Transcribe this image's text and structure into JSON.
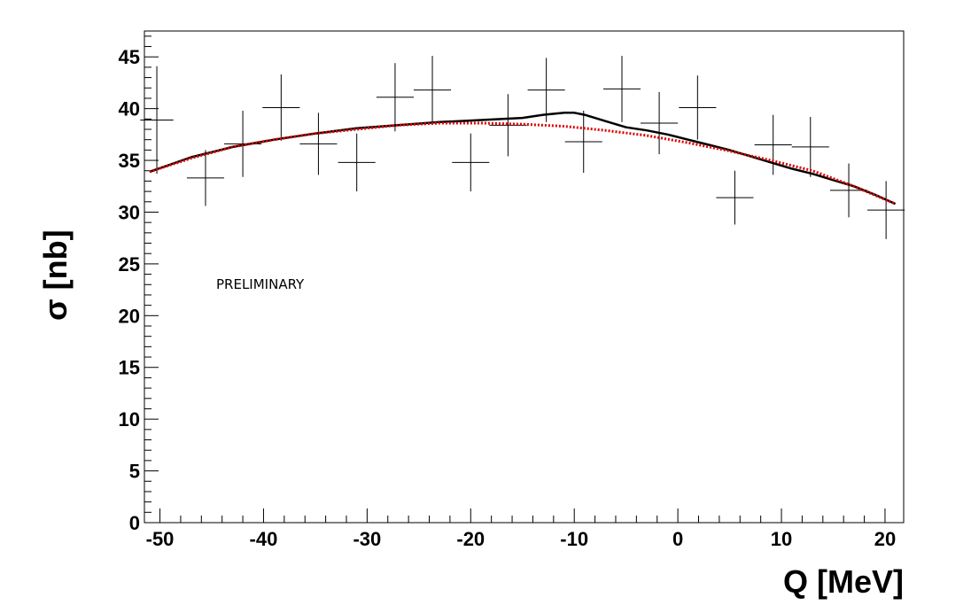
{
  "chart_data": {
    "type": "scatter",
    "xlabel": "Q [MeV]",
    "ylabel": "σ [nb]",
    "annotation": "PRELIMINARY",
    "xlim": [
      -51.5,
      21.8
    ],
    "ylim": [
      0,
      47.5
    ],
    "grid": false,
    "x_ticks": [
      -50,
      -40,
      -30,
      -20,
      -10,
      0,
      10,
      20
    ],
    "y_ticks": [
      0,
      5,
      10,
      15,
      20,
      25,
      30,
      35,
      40,
      45
    ],
    "x_tick_labels": [
      "-50",
      "-40",
      "-30",
      "-20",
      "-10",
      "0",
      "10",
      "20"
    ],
    "y_tick_labels": [
      "0",
      "5",
      "10",
      "15",
      "20",
      "25",
      "30",
      "35",
      "40",
      "45"
    ],
    "colors": {
      "data": "#000000",
      "fit_total": "#000000",
      "fit_background": "#dd0000"
    },
    "series": [
      {
        "kind": "errorbars",
        "points": [
          {
            "x": -50.3,
            "y": 38.9,
            "xerr": 1.6,
            "yerr": 5.2
          },
          {
            "x": -45.6,
            "y": 33.3,
            "xerr": 1.8,
            "yerr": 2.7
          },
          {
            "x": -42.0,
            "y": 36.6,
            "xerr": 1.8,
            "yerr": 3.2
          },
          {
            "x": -38.3,
            "y": 40.1,
            "xerr": 1.8,
            "yerr": 3.2
          },
          {
            "x": -34.7,
            "y": 36.6,
            "xerr": 1.8,
            "yerr": 3.0
          },
          {
            "x": -31.0,
            "y": 34.8,
            "xerr": 1.8,
            "yerr": 2.8
          },
          {
            "x": -27.3,
            "y": 41.1,
            "xerr": 1.8,
            "yerr": 3.3
          },
          {
            "x": -23.7,
            "y": 41.8,
            "xerr": 1.8,
            "yerr": 3.3
          },
          {
            "x": -20.0,
            "y": 34.8,
            "xerr": 1.8,
            "yerr": 2.8
          },
          {
            "x": -16.4,
            "y": 38.4,
            "xerr": 1.8,
            "yerr": 3.0
          },
          {
            "x": -12.7,
            "y": 41.8,
            "xerr": 1.8,
            "yerr": 3.1
          },
          {
            "x": -9.1,
            "y": 36.8,
            "xerr": 1.8,
            "yerr": 3.0
          },
          {
            "x": -5.4,
            "y": 41.9,
            "xerr": 1.8,
            "yerr": 3.2
          },
          {
            "x": -1.8,
            "y": 38.6,
            "xerr": 1.8,
            "yerr": 3.0
          },
          {
            "x": 1.9,
            "y": 40.1,
            "xerr": 1.8,
            "yerr": 3.1
          },
          {
            "x": 5.5,
            "y": 31.4,
            "xerr": 1.8,
            "yerr": 2.6
          },
          {
            "x": 9.2,
            "y": 36.5,
            "xerr": 1.8,
            "yerr": 2.9
          },
          {
            "x": 12.8,
            "y": 36.3,
            "xerr": 1.8,
            "yerr": 2.9
          },
          {
            "x": 16.5,
            "y": 32.1,
            "xerr": 1.8,
            "yerr": 2.6
          },
          {
            "x": 20.1,
            "y": 30.2,
            "xerr": 1.8,
            "yerr": 2.8
          }
        ]
      },
      {
        "kind": "line",
        "style": "solid",
        "x": [
          -51,
          -47,
          -43,
          -39,
          -35,
          -31,
          -27,
          -23,
          -19,
          -15,
          -13,
          -11,
          -10,
          -9,
          -7,
          -5,
          -3,
          -1,
          1,
          3,
          5,
          7,
          9,
          11,
          13,
          15,
          17,
          19,
          21
        ],
        "y": [
          33.9,
          35.3,
          36.3,
          37.0,
          37.6,
          38.1,
          38.4,
          38.7,
          38.9,
          39.1,
          39.4,
          39.6,
          39.6,
          39.4,
          38.8,
          38.2,
          37.9,
          37.5,
          37.0,
          36.5,
          36.0,
          35.4,
          34.8,
          34.2,
          33.7,
          33.1,
          32.5,
          31.7,
          30.8
        ]
      },
      {
        "kind": "line",
        "style": "dotted",
        "x": [
          -51,
          -47,
          -43,
          -39,
          -35,
          -31,
          -27,
          -23,
          -19,
          -15,
          -11,
          -7,
          -3,
          1,
          5,
          9,
          13,
          17,
          21
        ],
        "y": [
          33.9,
          35.2,
          36.3,
          37.0,
          37.6,
          38.0,
          38.4,
          38.6,
          38.6,
          38.5,
          38.3,
          37.9,
          37.4,
          36.7,
          35.9,
          35.0,
          34.0,
          32.5,
          30.8
        ]
      }
    ]
  }
}
